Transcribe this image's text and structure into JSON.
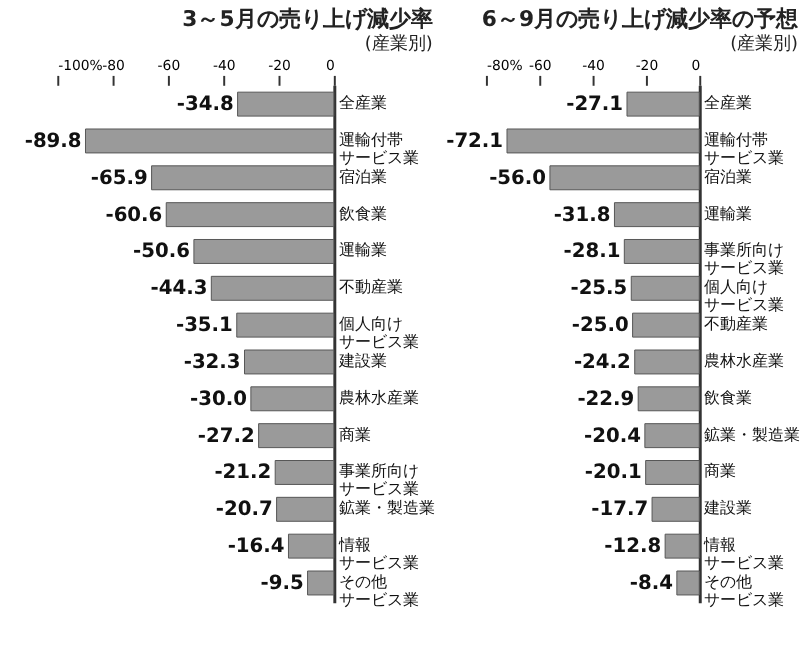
{
  "chart_data": [
    {
      "type": "bar",
      "orientation": "horizontal",
      "title": "3～5月の売り上げ減少率",
      "subtitle": "(産業別)",
      "categories": [
        "全産業",
        "運輸付帯サービス業",
        "宿泊業",
        "飲食業",
        "運輸業",
        "不動産業",
        "個人向けサービス業",
        "建設業",
        "農林水産業",
        "商業",
        "事業所向けサービス業",
        "鉱業・製造業",
        "情報サービス業",
        "その他サービス業"
      ],
      "values": [
        -34.8,
        -89.8,
        -65.9,
        -60.6,
        -50.6,
        -44.3,
        -35.1,
        -32.3,
        -30.0,
        -27.2,
        -21.2,
        -20.7,
        -16.4,
        -9.5
      ],
      "value_labels": [
        "-34.8",
        "-89.8",
        "-65.9",
        "-60.6",
        "-50.6",
        "-44.3",
        "-35.1",
        "-32.3",
        "-30.0",
        "-27.2",
        "-21.2",
        "-20.7",
        "-16.4",
        "-9.5"
      ],
      "color": "#9a9a9a",
      "xlim": [
        -100,
        0
      ],
      "xticks": [
        {
          "value": -100,
          "label": "-100%"
        },
        -80,
        -60,
        -40,
        -20,
        0
      ]
    },
    {
      "type": "bar",
      "orientation": "horizontal",
      "title": "6～9月の売り上げ減少率の予想",
      "subtitle": "(産業別)",
      "categories": [
        "全産業",
        "運輸付帯サービス業",
        "宿泊業",
        "運輸業",
        "事業所向けサービス業",
        "個人向けサービス業",
        "不動産業",
        "農林水産業",
        "飲食業",
        "鉱業・製造業",
        "商業",
        "建設業",
        "情報サービス業",
        "その他サービス業"
      ],
      "values": [
        -27.1,
        -72.1,
        -56.0,
        -31.8,
        -28.1,
        -25.5,
        -25.0,
        -24.2,
        -22.9,
        -20.4,
        -20.1,
        -17.7,
        -12.8,
        -8.4
      ],
      "value_labels": [
        "-27.1",
        "-72.1",
        "-56.0",
        "-31.8",
        "-28.1",
        "-25.5",
        "-25.0",
        "-24.2",
        "-22.9",
        "-20.4",
        "-20.1",
        "-17.7",
        "-12.8",
        "-8.4"
      ],
      "color": "#9a9a9a",
      "xlim": [
        -80,
        0
      ],
      "xticks": [
        {
          "value": -80,
          "label": "-80%"
        },
        -60,
        -40,
        -20,
        0
      ]
    }
  ]
}
